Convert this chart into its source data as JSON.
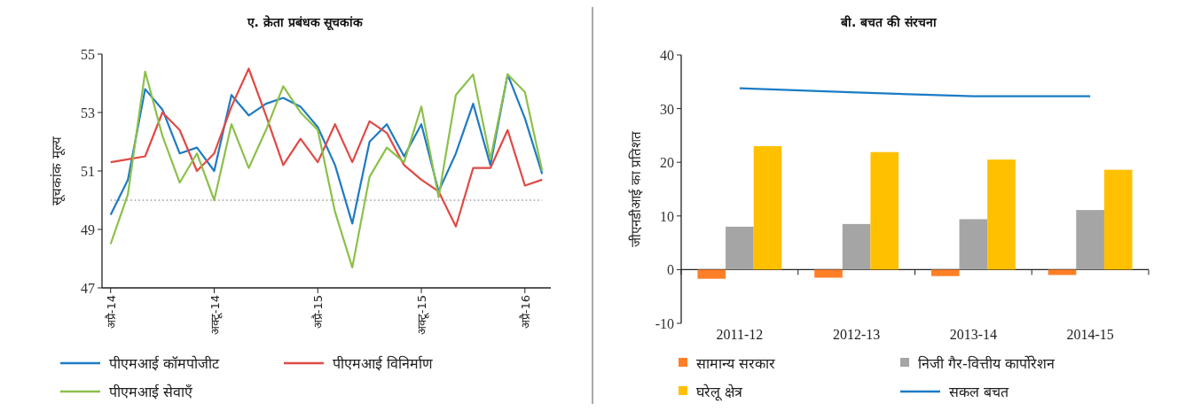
{
  "chart_data": [
    {
      "type": "line",
      "title": "ए. क्रेता प्रबंधक सूचकांक",
      "ylabel": "सूचकांक मूल्य",
      "categories": [
        "अप्रै-14",
        null,
        null,
        null,
        null,
        null,
        "अक्टू-14",
        null,
        null,
        null,
        null,
        null,
        "अप्रै-15",
        null,
        null,
        null,
        null,
        null,
        "अक्टू-15",
        null,
        null,
        null,
        null,
        null,
        "अप्रै-16",
        null
      ],
      "series": [
        {
          "name": "पीएमआई कॉमपोजीट",
          "color": "#1f7bc1",
          "values": [
            49.5,
            50.7,
            53.8,
            53.1,
            51.6,
            51.8,
            51.0,
            53.6,
            52.9,
            53.3,
            53.5,
            53.2,
            52.5,
            51.2,
            49.2,
            52.0,
            52.6,
            51.5,
            52.6,
            50.3,
            51.6,
            53.3,
            51.2,
            54.3,
            52.8,
            50.9
          ]
        },
        {
          "name": "पीएमआई विनिर्माण",
          "color": "#e04a45",
          "values": [
            51.3,
            51.4,
            51.5,
            53.0,
            52.4,
            51.0,
            51.6,
            53.2,
            54.5,
            52.9,
            51.2,
            52.1,
            51.3,
            52.6,
            51.3,
            52.7,
            52.3,
            51.2,
            50.7,
            50.3,
            49.1,
            51.1,
            51.1,
            52.4,
            50.5,
            50.7
          ]
        },
        {
          "name": "पीएमआई सेवाएँ",
          "color": "#8cc04a",
          "values": [
            48.5,
            50.2,
            54.4,
            52.2,
            50.6,
            51.6,
            50.0,
            52.6,
            51.1,
            52.4,
            53.9,
            53.0,
            52.4,
            49.6,
            47.7,
            50.8,
            51.8,
            51.3,
            53.2,
            50.1,
            53.6,
            54.3,
            51.4,
            54.3,
            53.7,
            51.0
          ]
        }
      ],
      "ylim": [
        47,
        55
      ],
      "yticks": [
        47,
        49,
        51,
        53,
        55
      ],
      "ref_lines": [
        {
          "axis": "y",
          "value": 50,
          "color": "#666666",
          "line_style": "dotted"
        }
      ],
      "legend": "bottom"
    },
    {
      "type": "bar",
      "title": "बी. बचत की संरचना",
      "ylabel": "जीएनडीआई का प्रतिशत",
      "categories": [
        "2011-12",
        "2012-13",
        "2013-14",
        "2014-15"
      ],
      "series": [
        {
          "name": "सामान्य सरकार",
          "color": "#ff7f27",
          "values": [
            -1.7,
            -1.5,
            -1.2,
            -1.0
          ]
        },
        {
          "name": "निजी गैर-वित्तीय कार्पोरेशन",
          "color": "#a5a5a5",
          "values": [
            8.0,
            8.5,
            9.4,
            11.1
          ]
        },
        {
          "name": "घरेलू क्षेत्र",
          "color": "#ffc000",
          "values": [
            23.0,
            21.9,
            20.5,
            18.6
          ]
        },
        {
          "name": "सकल बचत",
          "type": "line",
          "color": "#1a7cc6",
          "values": [
            33.8,
            33.0,
            32.3,
            32.3
          ]
        }
      ],
      "ylim": [
        -10,
        40
      ],
      "yticks": [
        -10,
        0,
        10,
        20,
        30,
        40
      ],
      "legend": "bottom"
    }
  ]
}
